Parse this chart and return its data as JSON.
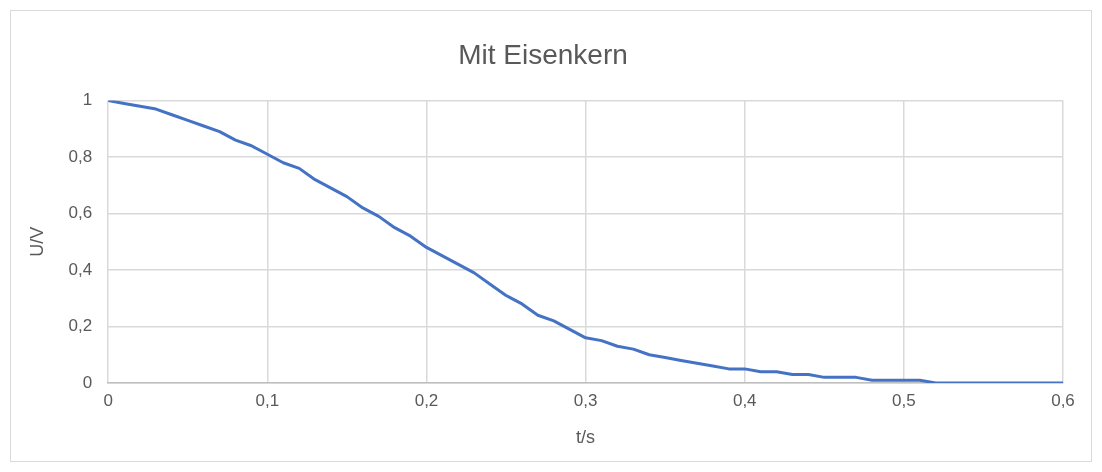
{
  "chart_data": {
    "type": "line",
    "title": "Mit Eisenkern",
    "xlabel": "t/s",
    "ylabel": "U/V",
    "x": [
      0,
      0.01,
      0.02,
      0.03,
      0.04,
      0.05,
      0.06,
      0.07,
      0.08,
      0.09,
      0.1,
      0.11,
      0.12,
      0.13,
      0.14,
      0.15,
      0.16,
      0.17,
      0.18,
      0.19,
      0.2,
      0.21,
      0.22,
      0.23,
      0.24,
      0.25,
      0.26,
      0.27,
      0.28,
      0.29,
      0.3,
      0.31,
      0.32,
      0.33,
      0.34,
      0.35,
      0.36,
      0.37,
      0.38,
      0.39,
      0.4,
      0.41,
      0.42,
      0.43,
      0.44,
      0.45,
      0.46,
      0.47,
      0.48,
      0.49,
      0.5,
      0.51,
      0.52,
      0.53,
      0.54,
      0.55,
      0.56,
      0.57,
      0.58,
      0.59,
      0.6
    ],
    "series": [
      {
        "color": "#4472c4",
        "values": [
          1,
          0.99,
          0.98,
          0.97,
          0.95,
          0.93,
          0.91,
          0.89,
          0.86,
          0.84,
          0.81,
          0.78,
          0.76,
          0.72,
          0.69,
          0.66,
          0.62,
          0.59,
          0.55,
          0.52,
          0.48,
          0.45,
          0.42,
          0.39,
          0.35,
          0.31,
          0.28,
          0.24,
          0.22,
          0.19,
          0.16,
          0.15,
          0.13,
          0.12,
          0.1,
          0.09,
          0.08,
          0.07,
          0.06,
          0.05,
          0.05,
          0.04,
          0.04,
          0.03,
          0.03,
          0.02,
          0.02,
          0.02,
          0.01,
          0.01,
          0.01,
          0.01,
          0,
          0,
          0,
          0,
          0,
          0,
          0,
          0,
          0
        ]
      }
    ],
    "xlim": [
      0,
      0.6
    ],
    "xticks": [
      {
        "value": 0,
        "label": "0"
      },
      {
        "value": 0.1,
        "label": "0,1"
      },
      {
        "value": 0.2,
        "label": "0,2"
      },
      {
        "value": 0.3,
        "label": "0,3"
      },
      {
        "value": 0.4,
        "label": "0,4"
      },
      {
        "value": 0.5,
        "label": "0,5"
      },
      {
        "value": 0.6,
        "label": "0,6"
      }
    ],
    "ylim": [
      0,
      1
    ],
    "yticks": [
      {
        "value": 0,
        "label": "0"
      },
      {
        "value": 0.2,
        "label": "0,2"
      },
      {
        "value": 0.4,
        "label": "0,4"
      },
      {
        "value": 0.6,
        "label": "0,6"
      },
      {
        "value": 0.8,
        "label": "0,8"
      },
      {
        "value": 1,
        "label": "1"
      }
    ],
    "grid": true,
    "marker": "none",
    "line_style": "solid",
    "legend": false
  }
}
